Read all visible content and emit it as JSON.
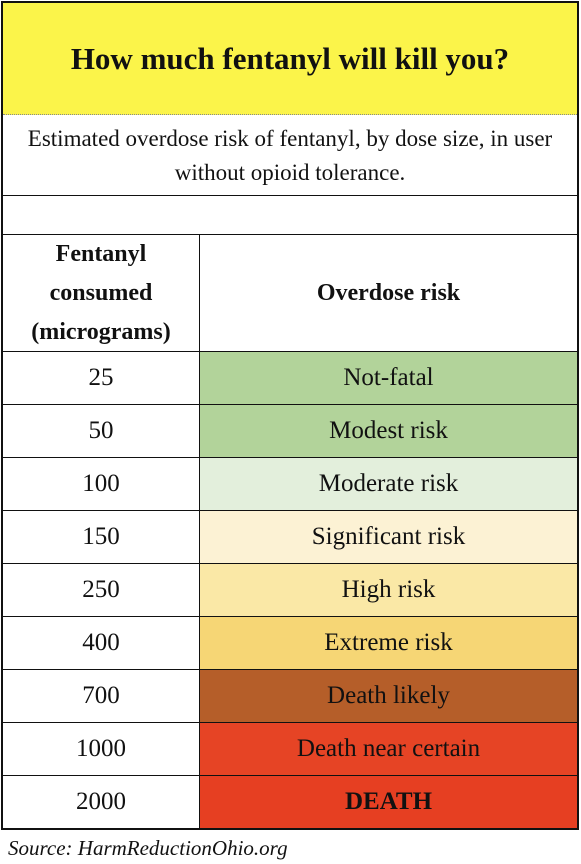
{
  "chart_data": {
    "type": "table",
    "title": "How much fentanyl will kill you?",
    "subtitle": "Estimated overdose risk of fentanyl, by dose size, in user without opioid tolerance.",
    "columns": [
      "Fentanyl consumed (micrograms)",
      "Overdose risk"
    ],
    "rows": [
      {
        "dose": "25",
        "risk": "Not-fatal",
        "color": "#b2d39a",
        "bold": false
      },
      {
        "dose": "50",
        "risk": "Modest risk",
        "color": "#b2d39a",
        "bold": false
      },
      {
        "dose": "100",
        "risk": "Moderate risk",
        "color": "#e3efdc",
        "bold": false
      },
      {
        "dose": "150",
        "risk": "Significant risk",
        "color": "#fcf2d4",
        "bold": false
      },
      {
        "dose": "250",
        "risk": "High risk",
        "color": "#fae8a6",
        "bold": false
      },
      {
        "dose": "400",
        "risk": "Extreme risk",
        "color": "#f6d675",
        "bold": false
      },
      {
        "dose": "700",
        "risk": "Death likely",
        "color": "#b55e29",
        "bold": false
      },
      {
        "dose": "1000",
        "risk": "Death near certain",
        "color": "#e64425",
        "bold": false
      },
      {
        "dose": "2000",
        "risk": "DEATH",
        "color": "#e63f22",
        "bold": true
      }
    ],
    "title_band_color": "#fbf44a"
  },
  "header": {
    "dose_line1": "Fentanyl",
    "dose_line2": "consumed",
    "dose_line3": "(micrograms)",
    "risk": "Overdose risk"
  },
  "source": "Source: HarmReductionOhio.org"
}
